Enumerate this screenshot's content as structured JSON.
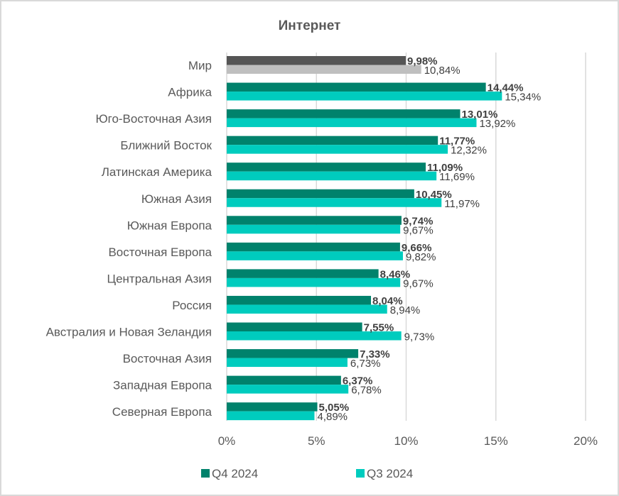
{
  "chart_data": {
    "type": "bar",
    "orientation": "horizontal",
    "title": "Интернет",
    "xlabel": "",
    "ylabel": "",
    "xlim": [
      0,
      20
    ],
    "x_ticks": [
      "0%",
      "5%",
      "10%",
      "15%",
      "20%"
    ],
    "x_tick_values": [
      0,
      5,
      10,
      15,
      20
    ],
    "grid": true,
    "legend_position": "bottom",
    "categories": [
      "Мир",
      "Африка",
      "Юго-Восточная Азия",
      "Ближний Восток",
      "Латинская Америка",
      "Южная Азия",
      "Южная Европа",
      "Восточная Европа",
      "Центральная Азия",
      "Россия",
      "Австралия и Новая Зеландия",
      "Восточная Азия",
      "Западная Европа",
      "Северная Европа"
    ],
    "series": [
      {
        "name": "Q4 2024",
        "color": "#00826c",
        "highlight_color": "#555555",
        "values": [
          9.98,
          14.44,
          13.01,
          11.77,
          11.09,
          10.45,
          9.74,
          9.66,
          8.46,
          8.04,
          7.55,
          7.33,
          6.37,
          5.05
        ],
        "labels": [
          "9,98%",
          "14,44%",
          "13,01%",
          "11,77%",
          "11,09%",
          "10,45%",
          "9,74%",
          "9,66%",
          "8,46%",
          "8,04%",
          "7,55%",
          "7,33%",
          "6,37%",
          "5,05%"
        ]
      },
      {
        "name": "Q3 2024",
        "color": "#00ccbe",
        "highlight_color": "#bfbfbf",
        "values": [
          10.84,
          15.34,
          13.92,
          12.32,
          11.69,
          11.97,
          9.67,
          9.82,
          9.67,
          8.94,
          9.73,
          6.73,
          6.78,
          4.89
        ],
        "labels": [
          "10,84%",
          "15,34%",
          "13,92%",
          "12,32%",
          "11,69%",
          "11,97%",
          "9,67%",
          "9,82%",
          "9,67%",
          "8,94%",
          "9,73%",
          "6,73%",
          "6,78%",
          "4,89%"
        ]
      }
    ],
    "highlighted_category": "Мир"
  },
  "colors": {
    "grid": "#d9d9d9",
    "text": "#595959",
    "border": "#d9d9d9"
  }
}
